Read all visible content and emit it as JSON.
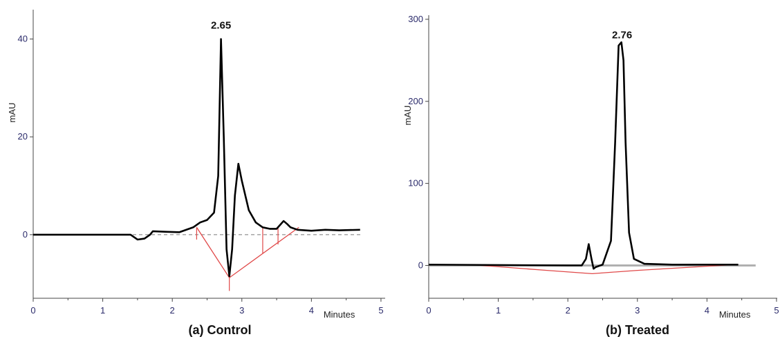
{
  "chart_data": [
    {
      "type": "line",
      "caption": "(a) Control",
      "ylabel": "mAU",
      "xunit": "Minutes",
      "xlim": [
        0,
        5.1
      ],
      "ylim": [
        -13,
        46
      ],
      "xticks": [
        0,
        1,
        2,
        3,
        4,
        5
      ],
      "yticks": [
        0,
        20,
        40
      ],
      "peak_label": {
        "text": "2.65",
        "x": 2.7,
        "y": 41
      },
      "series": [
        {
          "color": "#000000",
          "x": [
            0,
            1.4,
            1.5,
            1.6,
            1.68,
            1.72,
            1.9,
            2.1,
            2.3,
            2.4,
            2.5,
            2.6,
            2.66,
            2.7,
            2.74,
            2.78,
            2.82,
            2.86,
            2.9,
            2.95,
            3.0,
            3.1,
            3.2,
            3.3,
            3.4,
            3.5,
            3.55,
            3.6,
            3.65,
            3.7,
            3.8,
            4.0,
            4.2,
            4.4,
            4.7
          ],
          "y": [
            0,
            0,
            -1,
            -0.8,
            0,
            0.7,
            0.6,
            0.5,
            1.5,
            2.5,
            3,
            4.5,
            12,
            40,
            20,
            -3,
            -8.5,
            -3,
            8,
            14.5,
            11,
            5,
            2.5,
            1.5,
            1.2,
            1.2,
            2,
            2.8,
            2.2,
            1.5,
            1,
            0.8,
            1,
            0.9,
            1
          ]
        }
      ],
      "baseline": {
        "color": "#e04848",
        "x": [
          2.35,
          2.82,
          3.82
        ],
        "y": [
          1.5,
          -8.8,
          1.5
        ]
      },
      "drop_lines": [
        {
          "x": 2.35,
          "y": [
            1.5,
            -1
          ]
        },
        {
          "x": 3.3,
          "y": [
            1.5,
            -3.8
          ]
        },
        {
          "x": 3.52,
          "y": [
            1.5,
            -2
          ]
        },
        {
          "x": 2.82,
          "y": [
            -8.8,
            -11.5
          ]
        }
      ]
    },
    {
      "type": "line",
      "caption": "(b) Treated",
      "ylabel": "mAU",
      "xunit": "Minutes",
      "xlim": [
        0,
        5.05
      ],
      "ylim": [
        -40,
        305
      ],
      "xticks": [
        0,
        1,
        2,
        3,
        4,
        5
      ],
      "yticks": [
        0,
        100,
        200,
        300
      ],
      "peak_label": {
        "text": "2.76",
        "x": 2.78,
        "y": 270
      },
      "series": [
        {
          "color": "#000000",
          "x": [
            0,
            2.0,
            2.2,
            2.26,
            2.3,
            2.34,
            2.37,
            2.4,
            2.5,
            2.62,
            2.68,
            2.73,
            2.77,
            2.8,
            2.83,
            2.88,
            2.95,
            3.1,
            3.5,
            4.0,
            4.45
          ],
          "y": [
            1,
            0,
            0,
            8,
            26,
            8,
            -4,
            -2,
            1,
            30,
            150,
            268,
            272,
            250,
            150,
            40,
            8,
            2,
            1,
            1,
            1
          ]
        }
      ],
      "baseline": {
        "color": "#e04848",
        "x": [
          0.6,
          1.7,
          2.35,
          3.0,
          3.6,
          4.4
        ],
        "y": [
          1,
          -6,
          -10,
          -6,
          -3,
          1
        ]
      },
      "gray_baseline": {
        "x": [
          0,
          4.7
        ],
        "y": [
          0,
          0
        ]
      }
    }
  ]
}
